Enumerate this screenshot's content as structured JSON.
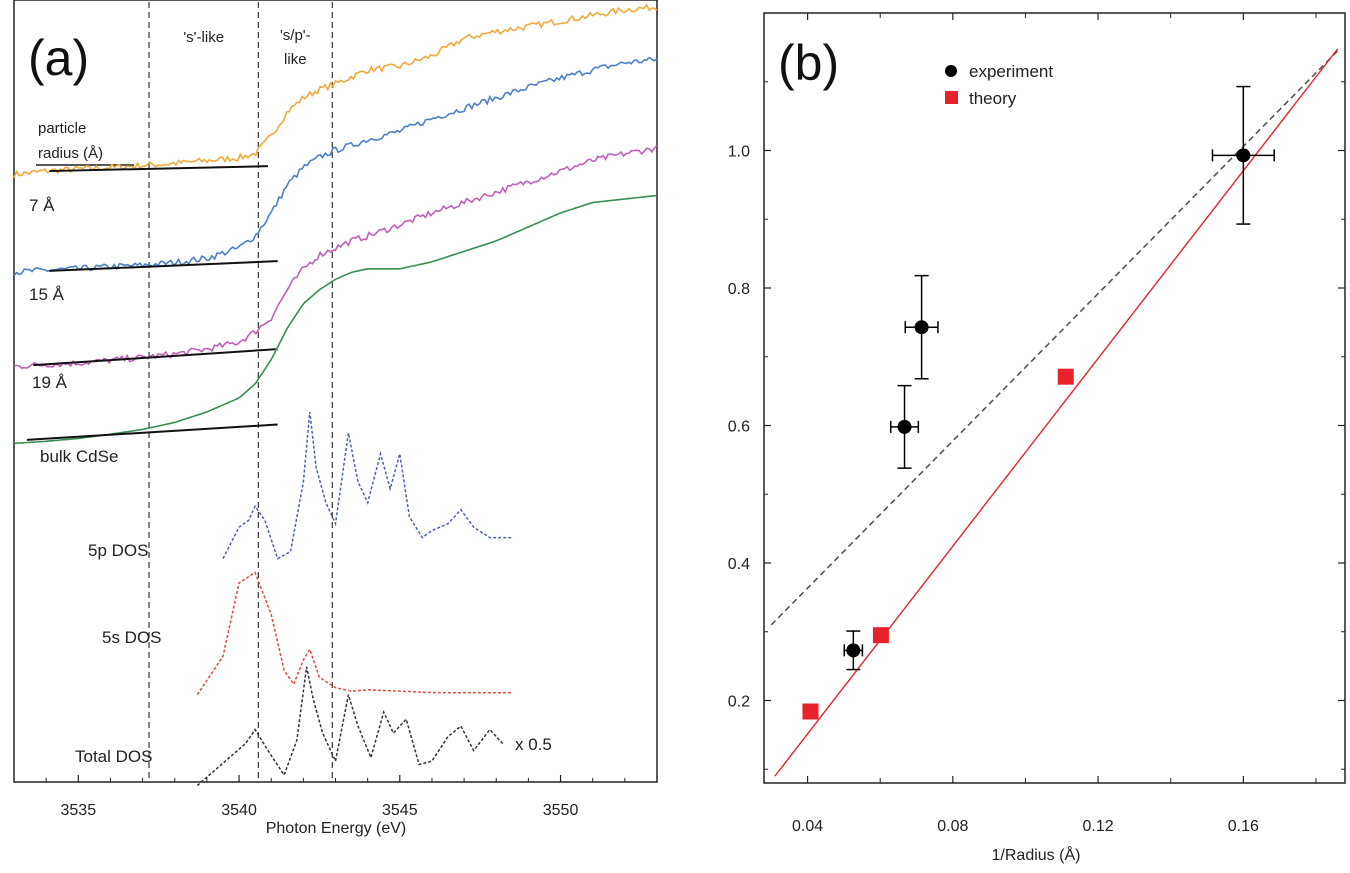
{
  "chart_data": [
    {
      "panel": "(a)",
      "type": "line",
      "xlabel": "Photon Energy (eV)",
      "ylabel": "",
      "xlim": [
        3533,
        3553
      ],
      "ylim": [
        -1.2,
        10.0
      ],
      "x_ticks": [
        3535,
        3540,
        3545,
        3550
      ],
      "region_lines": [
        3537.2,
        3540.6,
        3542.9
      ],
      "region_labels": [
        {
          "text": "'s'-like",
          "x": 3538.9
        },
        {
          "text": "'s/p'-",
          "x": 3541.75
        },
        {
          "text": "like",
          "x": 3541.75
        }
      ],
      "size_header": [
        "particle",
        "radius (Å)"
      ],
      "series": [
        {
          "name": "7 Å",
          "color": "#f2a93b",
          "baseline": [
            [
              3534.1,
              7.55
            ],
            [
              3540.9,
              7.62
            ]
          ],
          "x": [
            3533,
            3534,
            3535,
            3536,
            3537,
            3538,
            3539,
            3540,
            3540.5,
            3541,
            3541.5,
            3542,
            3542.5,
            3543,
            3543.5,
            3544,
            3545,
            3546,
            3547,
            3548,
            3549,
            3550,
            3551,
            3552,
            3553
          ],
          "y": [
            7.5,
            7.55,
            7.58,
            7.6,
            7.63,
            7.66,
            7.7,
            7.74,
            7.8,
            8.05,
            8.4,
            8.6,
            8.72,
            8.8,
            8.9,
            9.0,
            9.05,
            9.2,
            9.45,
            9.55,
            9.62,
            9.7,
            9.78,
            9.86,
            9.9
          ]
        },
        {
          "name": "15 Å",
          "color": "#4f80c8",
          "baseline": [
            [
              3534.1,
              6.12
            ],
            [
              3541.2,
              6.26
            ]
          ],
          "x": [
            3533,
            3534,
            3535,
            3536,
            3537,
            3538,
            3539,
            3540,
            3540.5,
            3541,
            3541.5,
            3542,
            3542.5,
            3543,
            3543.5,
            3544,
            3545,
            3546,
            3547,
            3548,
            3549,
            3550,
            3551,
            3552,
            3553
          ],
          "y": [
            6.1,
            6.13,
            6.15,
            6.18,
            6.2,
            6.24,
            6.3,
            6.45,
            6.62,
            6.95,
            7.35,
            7.6,
            7.75,
            7.85,
            7.92,
            8.0,
            8.12,
            8.3,
            8.45,
            8.6,
            8.75,
            8.88,
            9.0,
            9.1,
            9.15
          ]
        },
        {
          "name": "19 Å",
          "color": "#c060b8",
          "baseline": [
            [
              3533.6,
              4.77
            ],
            [
              3541.2,
              5.0
            ]
          ],
          "x": [
            3533,
            3534,
            3535,
            3536,
            3537,
            3538,
            3539,
            3540,
            3540.5,
            3541,
            3541.5,
            3542,
            3542.5,
            3543,
            3543.5,
            3544,
            3545,
            3546,
            3547,
            3548,
            3549,
            3550,
            3551,
            3552,
            3553
          ],
          "y": [
            4.75,
            4.78,
            4.8,
            4.84,
            4.88,
            4.93,
            5.0,
            5.1,
            5.25,
            5.45,
            5.85,
            6.15,
            6.35,
            6.45,
            6.55,
            6.62,
            6.78,
            6.95,
            7.1,
            7.25,
            7.4,
            7.55,
            7.7,
            7.8,
            7.88
          ]
        },
        {
          "name": "bulk CdSe",
          "color": "#3a8d52",
          "baseline": [
            [
              3533.4,
              3.7
            ],
            [
              3541.2,
              3.92
            ]
          ],
          "x": [
            3533,
            3534,
            3535,
            3536,
            3537,
            3538,
            3539,
            3540,
            3540.5,
            3541,
            3541.5,
            3542,
            3542.5,
            3543,
            3543.5,
            3544,
            3545,
            3546,
            3547,
            3548,
            3549,
            3550,
            3551,
            3552,
            3553
          ],
          "y": [
            3.65,
            3.68,
            3.72,
            3.78,
            3.85,
            3.95,
            4.1,
            4.3,
            4.5,
            4.85,
            5.3,
            5.65,
            5.85,
            6.0,
            6.1,
            6.15,
            6.15,
            6.25,
            6.4,
            6.55,
            6.75,
            6.95,
            7.1,
            7.15,
            7.2
          ]
        }
      ],
      "dos": [
        {
          "name": "5p DOS",
          "color": "#4a63ad",
          "x": [
            3539.5,
            3540,
            3540.3,
            3540.5,
            3540.8,
            3541.2,
            3541.6,
            3542,
            3542.2,
            3542.4,
            3542.7,
            3543,
            3543.4,
            3543.7,
            3544,
            3544.4,
            3544.7,
            3545,
            3545.3,
            3545.7,
            3546,
            3546.5,
            3546.9,
            3547.3,
            3547.8,
            3548.5
          ],
          "y": [
            2.0,
            2.45,
            2.55,
            2.75,
            2.55,
            2.0,
            2.1,
            3.1,
            4.1,
            3.3,
            2.8,
            2.5,
            3.8,
            3.1,
            2.8,
            3.5,
            3.0,
            3.5,
            2.6,
            2.3,
            2.4,
            2.5,
            2.7,
            2.45,
            2.3,
            2.3
          ]
        },
        {
          "name": "5s DOS",
          "color": "#e04a40",
          "x": [
            3538.7,
            3539.5,
            3540,
            3540.5,
            3541,
            3541.4,
            3541.7,
            3542,
            3542.2,
            3542.5,
            3543,
            3543.5,
            3544,
            3545,
            3546,
            3547,
            3548.5
          ],
          "y": [
            0.05,
            0.6,
            1.65,
            1.8,
            1.2,
            0.4,
            0.2,
            0.55,
            0.7,
            0.3,
            0.15,
            0.1,
            0.12,
            0.1,
            0.08,
            0.08,
            0.08
          ]
        },
        {
          "name": "Total DOS",
          "color": "#333333",
          "x": [
            3538.7,
            3539.7,
            3540.2,
            3540.5,
            3540.9,
            3541.4,
            3541.8,
            3542.1,
            3542.3,
            3542.6,
            3543,
            3543.4,
            3543.7,
            3544.1,
            3544.5,
            3544.8,
            3545.2,
            3545.6,
            3546,
            3546.5,
            3546.9,
            3547.3,
            3547.8,
            3548.2
          ],
          "y": [
            -1.25,
            -0.85,
            -0.65,
            -0.45,
            -0.75,
            -1.1,
            -0.6,
            0.45,
            0.0,
            -0.5,
            -0.9,
            0.05,
            -0.4,
            -0.85,
            -0.2,
            -0.5,
            -0.3,
            -0.95,
            -0.9,
            -0.55,
            -0.4,
            -0.75,
            -0.45,
            -0.65
          ]
        }
      ],
      "scale_note": "x 0.5"
    },
    {
      "panel": "(b)",
      "type": "scatter",
      "xlabel": "1/Radius (Å)",
      "ylabel": "",
      "xlim": [
        0.028,
        0.188
      ],
      "ylim": [
        0.08,
        1.2
      ],
      "x_ticks": [
        0.04,
        0.08,
        0.12,
        0.16
      ],
      "y_ticks": [
        0.2,
        0.4,
        0.6,
        0.8,
        1.0
      ],
      "x_tick_labels": [
        "0.04",
        "0.08",
        "0.12",
        "0.16"
      ],
      "y_tick_labels": [
        "0.2",
        "0.4",
        "0.6",
        "0.8",
        "1.0"
      ],
      "legend": {
        "position": "top-center",
        "entries": [
          "experiment",
          "theory"
        ]
      },
      "series": [
        {
          "name": "experiment",
          "marker": "circle",
          "color": "#000000",
          "points": [
            {
              "x": 0.0526,
              "y": 0.273,
              "xerr": 0.0025,
              "yerr": 0.028
            },
            {
              "x": 0.0667,
              "y": 0.598,
              "xerr": 0.0038,
              "yerr": 0.06
            },
            {
              "x": 0.0714,
              "y": 0.743,
              "xerr": 0.0045,
              "yerr": 0.075
            },
            {
              "x": 0.16,
              "y": 0.993,
              "xerr": 0.0085,
              "yerr": 0.1
            }
          ]
        },
        {
          "name": "theory",
          "marker": "square",
          "color": "#e8222a",
          "points": [
            {
              "x": 0.0408,
              "y": 0.184
            },
            {
              "x": 0.0602,
              "y": 0.295
            },
            {
              "x": 0.1111,
              "y": 0.671
            }
          ]
        }
      ],
      "fits": [
        {
          "name": "experiment fit",
          "style": "dashed",
          "color": "#555555",
          "x": [
            0.03,
            0.186
          ],
          "y": [
            0.31,
            1.145
          ]
        },
        {
          "name": "theory fit",
          "style": "solid",
          "color": "#e8222a",
          "x": [
            0.031,
            0.186
          ],
          "y": [
            0.09,
            1.148
          ]
        }
      ]
    }
  ]
}
